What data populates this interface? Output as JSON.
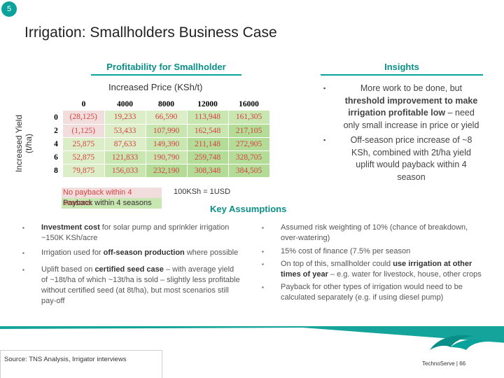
{
  "slide_number": "5",
  "title": "Irrigation: Smallholders Business Case",
  "left_section": {
    "heading": "Profitability for Smallholder",
    "price_label": "Increased Price (KSh/t)",
    "yield_label": "Increased Yield (t/ha)",
    "matrix": {
      "columns": [
        "0",
        "4000",
        "8000",
        "12000",
        "16000"
      ],
      "rows": [
        {
          "label": "0",
          "cells": [
            "(28,125)",
            "19,233",
            "66,590",
            "113,948",
            "161,305"
          ]
        },
        {
          "label": "2",
          "cells": [
            "(1,125)",
            "53,433",
            "107,990",
            "162,548",
            "217,105"
          ]
        },
        {
          "label": "4",
          "cells": [
            "25,875",
            "87,633",
            "149,390",
            "211,148",
            "272,905"
          ]
        },
        {
          "label": "6",
          "cells": [
            "52,875",
            "121,833",
            "190,790",
            "259,748",
            "328,705"
          ]
        },
        {
          "label": "8",
          "cells": [
            "79,875",
            "156,033",
            "232,190",
            "308,348",
            "384,505"
          ]
        }
      ]
    },
    "legend": {
      "no_payback": "No payback within 4 seasons",
      "payback": "Payback within 4 seasons"
    },
    "exchange_note": "100KSh = 1USD"
  },
  "insights": {
    "heading": "Insights",
    "items": [
      {
        "pre": "More work to be done, but ",
        "bold": "threshold improvement to make irrigation profitable low",
        "post": " – need only small increase in price or yield"
      },
      {
        "pre": "Off-season price increase of ~8 KSh, combined with 2t/ha yield uplift would payback within 4 season",
        "bold": "",
        "post": ""
      }
    ]
  },
  "assumptions": {
    "heading": "Key Assumptions",
    "left": [
      {
        "b1": "Investment cost",
        "t1": " for solar pump and sprinkler irrigation ~150K KSh/acre",
        "b2": "",
        "t2": ""
      },
      {
        "b1": "",
        "t1": "Irrigation used for ",
        "b2": "off-season production",
        "t2": " where possible"
      },
      {
        "b1": "",
        "t1": "Uplift based on ",
        "b2": "certified seed case",
        "t2": " – with average yield of ~18t/ha of which ~13t/ha is sold – slightly less profitable without certified seed (at 8t/ha), but most scenarios still pay-off"
      }
    ],
    "right": [
      {
        "pre": "Assumed risk weighting of 10% (chance of breakdown, over-watering)",
        "bold": "",
        "post": ""
      },
      {
        "pre": "15% cost of finance (7.5% per season",
        "bold": "",
        "post": ""
      },
      {
        "pre": "On top of this, smallholder could ",
        "bold": "use irrigation at other times of year",
        "post": " – e.g. water for livestock, house, other crops"
      },
      {
        "pre": "Payback for other types of irrigation would need to be calculated separately (e.g. if using diesel pump)",
        "bold": "",
        "post": ""
      }
    ]
  },
  "footer": {
    "source": "Source: TNS Analysis, Irrigator interviews",
    "brand": "TechnoServe | 66"
  },
  "colors": {
    "accent": "#0aa39b",
    "negative_text": "#d84141",
    "negative_fill": "#f2dddd",
    "positive_fill": "#c8e6b0"
  }
}
